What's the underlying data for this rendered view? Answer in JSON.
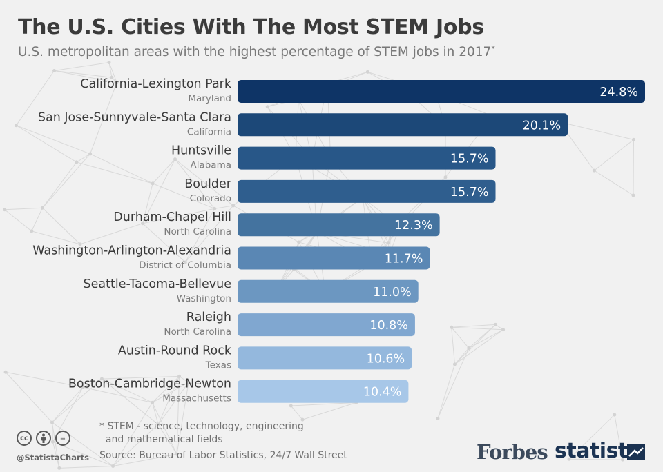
{
  "header": {
    "title": "The U.S. Cities With The Most STEM Jobs",
    "subtitle": "U.S. metropolitan areas with the highest percentage of STEM jobs in 2017",
    "subtitle_mark": "*"
  },
  "chart_data": {
    "type": "bar",
    "orientation": "horizontal",
    "categories": [
      "California-Lexington Park",
      "San Jose-Sunnyvale-Santa Clara",
      "Huntsville",
      "Boulder",
      "Durham-Chapel Hill",
      "Washington-Arlington-Alexandria",
      "Seattle-Tacoma-Bellevue",
      "Raleigh",
      "Austin-Round Rock",
      "Boston-Cambridge-Newton"
    ],
    "states": [
      "Maryland",
      "California",
      "Alabama",
      "Colorado",
      "North Carolina",
      "District of Columbia",
      "Washington",
      "North Carolina",
      "Texas",
      "Massachusetts"
    ],
    "values": [
      24.8,
      20.1,
      15.7,
      15.7,
      12.3,
      11.7,
      11.0,
      10.8,
      10.6,
      10.4
    ],
    "value_labels": [
      "24.8%",
      "20.1%",
      "15.7%",
      "15.7%",
      "12.3%",
      "11.7%",
      "11.0%",
      "10.8%",
      "10.6%",
      "10.4%"
    ],
    "colors": [
      "#0e3466",
      "#1c4878",
      "#285788",
      "#2f5e8e",
      "#44739f",
      "#5a87b4",
      "#6c97c1",
      "#80a7d0",
      "#94b8dd",
      "#a7c7e8"
    ],
    "xlim": [
      0,
      24.8
    ],
    "grid": false,
    "legend": "none"
  },
  "footer": {
    "footnote": "* STEM - science, technology, engineering\n  and mathematical fields",
    "source": "Source: Bureau of Labor Statistics, 24/7 Wall Street",
    "handle": "@StatistaCharts",
    "cc_icons": [
      "cc",
      "by",
      "="
    ],
    "forbes": "Forbes",
    "statista": "statista"
  }
}
